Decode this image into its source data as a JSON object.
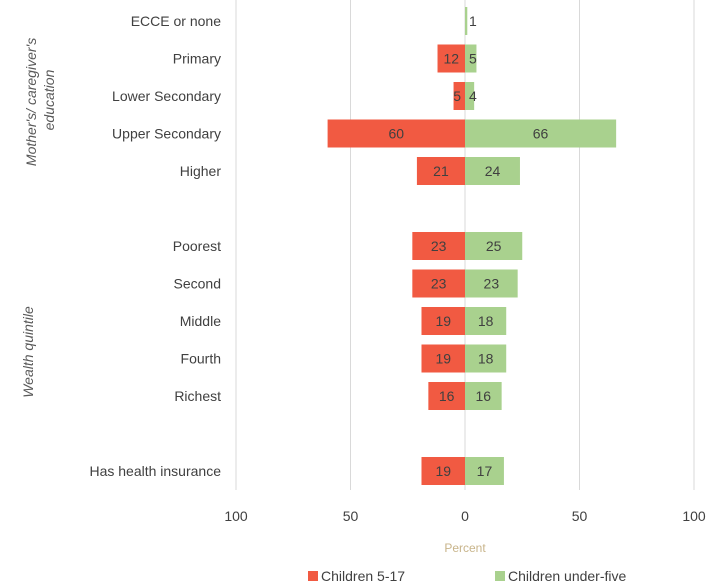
{
  "chart_data": {
    "type": "bar",
    "orientation": "horizontal-diverging",
    "categories": [
      "ECCE or none",
      "Primary",
      "Lower Secondary",
      "Upper Secondary",
      "Higher",
      "",
      "Poorest",
      "Second",
      "Middle",
      "Fourth",
      "Richest",
      "",
      "Has health insurance"
    ],
    "series": [
      {
        "name": "Children 5-17",
        "color": "#f15a42",
        "side": "left",
        "values": [
          null,
          12,
          5,
          null,
          21,
          null,
          23,
          23,
          19,
          19,
          16,
          null,
          19
        ],
        "labels": [
          "",
          "12",
          "5",
          "60",
          "21",
          "",
          "23",
          "23",
          "19",
          "19",
          "16",
          "",
          "19"
        ]
      },
      {
        "name": "Children under-five",
        "color": "#a9d18e",
        "side": "right",
        "values": [
          1,
          5,
          4,
          null,
          24,
          null,
          25,
          23,
          18,
          18,
          16,
          null,
          17
        ],
        "labels": [
          "1",
          "5",
          "4",
          "66",
          "24",
          "",
          "25",
          "23",
          "18",
          "18",
          "16",
          "",
          "17"
        ]
      }
    ],
    "bar_values_large": {
      "Children 5-17": 60,
      "Children under-five": 66
    },
    "group_labels": [
      "Mother's/ caregiver's education",
      "Wealth quintile"
    ],
    "xlabel": "Percent",
    "xlim": [
      -100,
      100
    ],
    "xticks": [
      -100,
      -50,
      0,
      50,
      100
    ],
    "xtick_labels": [
      "100",
      "50",
      "0",
      "50",
      "100"
    ],
    "grid": true,
    "legend_position": "bottom"
  }
}
